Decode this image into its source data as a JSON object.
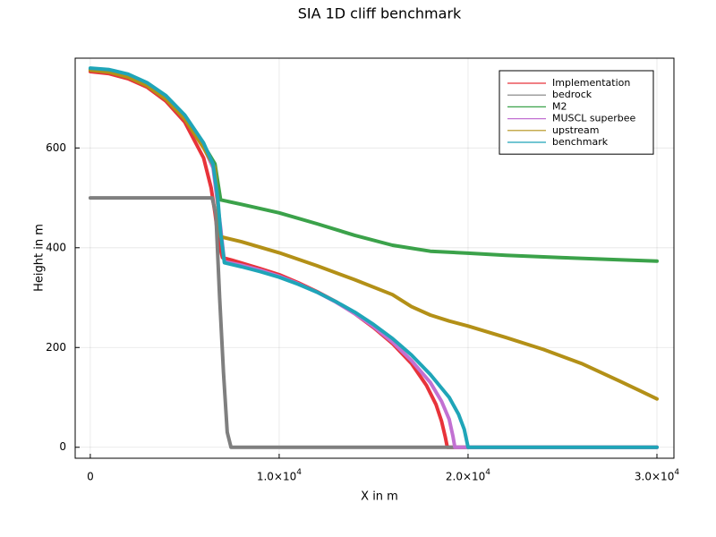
{
  "chart_data": {
    "type": "line",
    "title": "SIA 1D cliff benchmark",
    "xlabel": "X in m",
    "ylabel": "Height in m",
    "xlim": [
      -800,
      30900
    ],
    "ylim": [
      -22,
      780
    ],
    "x_ticks": [
      {
        "value": 0,
        "mant": "0",
        "exp": ""
      },
      {
        "value": 10000,
        "mant": "1.0×10",
        "exp": "4"
      },
      {
        "value": 20000,
        "mant": "2.0×10",
        "exp": "4"
      },
      {
        "value": 30000,
        "mant": "3.0×10",
        "exp": "4"
      }
    ],
    "y_ticks": [
      {
        "value": 0,
        "label": "0"
      },
      {
        "value": 200,
        "label": "200"
      },
      {
        "value": 400,
        "label": "400"
      },
      {
        "value": 600,
        "label": "600"
      }
    ],
    "grid": true,
    "legend_position": "top-right",
    "series": [
      {
        "name": "Implementation",
        "color": "#e8333a",
        "points": [
          [
            0,
            753
          ],
          [
            1000,
            749
          ],
          [
            2000,
            739
          ],
          [
            3000,
            722
          ],
          [
            4000,
            694
          ],
          [
            5000,
            652
          ],
          [
            6000,
            580
          ],
          [
            6400,
            520
          ],
          [
            6600,
            470
          ],
          [
            6800,
            410
          ],
          [
            7000,
            380
          ],
          [
            7500,
            375
          ],
          [
            9000,
            358
          ],
          [
            10000,
            346
          ],
          [
            11000,
            330
          ],
          [
            12000,
            312
          ],
          [
            13000,
            292
          ],
          [
            14000,
            268
          ],
          [
            15000,
            240
          ],
          [
            16000,
            208
          ],
          [
            17000,
            168
          ],
          [
            17800,
            124
          ],
          [
            18300,
            86
          ],
          [
            18600,
            52
          ],
          [
            18800,
            20
          ],
          [
            18900,
            0
          ],
          [
            30000,
            0
          ]
        ]
      },
      {
        "name": "bedrock",
        "color": "#7f7f7f",
        "points": [
          [
            0,
            500
          ],
          [
            6300,
            500
          ],
          [
            6450,
            500
          ],
          [
            6650,
            468
          ],
          [
            6850,
            300
          ],
          [
            7050,
            150
          ],
          [
            7250,
            30
          ],
          [
            7450,
            0
          ],
          [
            30000,
            0
          ]
        ]
      },
      {
        "name": "M2",
        "color": "#3ba24a",
        "points": [
          [
            0,
            758
          ],
          [
            1000,
            755
          ],
          [
            2000,
            745
          ],
          [
            3000,
            728
          ],
          [
            4000,
            702
          ],
          [
            5000,
            663
          ],
          [
            6000,
            606
          ],
          [
            6600,
            568
          ],
          [
            6900,
            496
          ],
          [
            8000,
            487
          ],
          [
            10000,
            470
          ],
          [
            12000,
            448
          ],
          [
            14000,
            425
          ],
          [
            16000,
            405
          ],
          [
            18000,
            393
          ],
          [
            20000,
            389
          ],
          [
            22000,
            385
          ],
          [
            25000,
            380
          ],
          [
            28000,
            376
          ],
          [
            30000,
            373
          ]
        ]
      },
      {
        "name": "MUSCL superbee",
        "color": "#c271d2",
        "points": [
          [
            0,
            757
          ],
          [
            1000,
            753
          ],
          [
            2000,
            744
          ],
          [
            3000,
            727
          ],
          [
            4000,
            700
          ],
          [
            5000,
            660
          ],
          [
            6000,
            602
          ],
          [
            6500,
            560
          ],
          [
            6900,
            440
          ],
          [
            7100,
            372
          ],
          [
            8000,
            365
          ],
          [
            9000,
            355
          ],
          [
            10000,
            343
          ],
          [
            11000,
            328
          ],
          [
            12000,
            311
          ],
          [
            13000,
            291
          ],
          [
            14000,
            268
          ],
          [
            15000,
            242
          ],
          [
            16000,
            211
          ],
          [
            17000,
            174
          ],
          [
            18000,
            130
          ],
          [
            18600,
            92
          ],
          [
            19000,
            56
          ],
          [
            19200,
            22
          ],
          [
            19300,
            0
          ],
          [
            30000,
            0
          ]
        ]
      },
      {
        "name": "upstream",
        "color": "#b39017",
        "points": [
          [
            0,
            756
          ],
          [
            1000,
            752
          ],
          [
            2000,
            742
          ],
          [
            3000,
            725
          ],
          [
            4000,
            698
          ],
          [
            5000,
            658
          ],
          [
            6000,
            600
          ],
          [
            6600,
            560
          ],
          [
            6900,
            422
          ],
          [
            8000,
            412
          ],
          [
            10000,
            390
          ],
          [
            12000,
            364
          ],
          [
            14000,
            336
          ],
          [
            16000,
            306
          ],
          [
            17000,
            282
          ],
          [
            18000,
            265
          ],
          [
            19000,
            253
          ],
          [
            20000,
            243
          ],
          [
            22000,
            220
          ],
          [
            24000,
            196
          ],
          [
            26000,
            168
          ],
          [
            28000,
            133
          ],
          [
            29000,
            115
          ],
          [
            30000,
            97
          ]
        ]
      },
      {
        "name": "benchmark",
        "color": "#1fa5b8",
        "points": [
          [
            0,
            760
          ],
          [
            1000,
            757
          ],
          [
            2000,
            748
          ],
          [
            3000,
            731
          ],
          [
            4000,
            705
          ],
          [
            5000,
            666
          ],
          [
            6000,
            610
          ],
          [
            6500,
            567
          ],
          [
            6750,
            500
          ],
          [
            6900,
            430
          ],
          [
            7100,
            370
          ],
          [
            8000,
            362
          ],
          [
            9000,
            352
          ],
          [
            10000,
            341
          ],
          [
            11000,
            327
          ],
          [
            12000,
            311
          ],
          [
            13000,
            292
          ],
          [
            14000,
            271
          ],
          [
            15000,
            246
          ],
          [
            16000,
            218
          ],
          [
            17000,
            185
          ],
          [
            18000,
            146
          ],
          [
            19000,
            100
          ],
          [
            19500,
            66
          ],
          [
            19800,
            36
          ],
          [
            20000,
            0
          ],
          [
            30000,
            0
          ]
        ]
      }
    ]
  }
}
